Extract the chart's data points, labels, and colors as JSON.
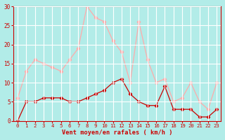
{
  "hours": [
    0,
    1,
    2,
    3,
    4,
    5,
    6,
    7,
    8,
    9,
    10,
    11,
    12,
    13,
    14,
    15,
    16,
    17,
    18,
    19,
    20,
    21,
    22,
    23
  ],
  "wind_avg": [
    0,
    5,
    5,
    6,
    6,
    6,
    5,
    5,
    6,
    7,
    8,
    10,
    11,
    7,
    5,
    4,
    4,
    9,
    3,
    3,
    3,
    1,
    1,
    3
  ],
  "wind_gust": [
    6,
    13,
    16,
    15,
    14,
    13,
    16,
    19,
    30,
    27,
    26,
    21,
    18,
    10,
    26,
    16,
    10,
    11,
    5,
    6,
    10,
    5,
    3,
    10
  ],
  "xlabel": "Vent moyen/en rafales ( km/h )",
  "ylim": [
    0,
    30
  ],
  "yticks": [
    0,
    5,
    10,
    15,
    20,
    25,
    30
  ],
  "color_avg": "#cc0000",
  "color_gust": "#ffaaaa",
  "bg_color": "#b2ece8",
  "grid_color": "#ffffff",
  "tick_label_color": "#cc0000",
  "xlabel_color": "#cc0000"
}
